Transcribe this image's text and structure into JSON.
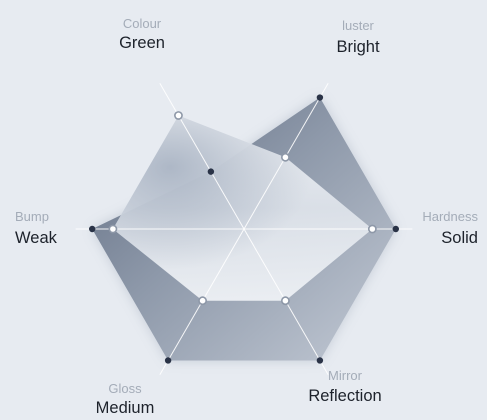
{
  "chart_data": {
    "type": "radar",
    "axes": [
      {
        "category": "Colour",
        "value": "Green"
      },
      {
        "category": "luster",
        "value": "Bright"
      },
      {
        "category": "Hardness",
        "value": "Solid"
      },
      {
        "category": "Mirror",
        "value": "Reflection"
      },
      {
        "category": "Gloss",
        "value": "Medium"
      },
      {
        "category": "Bump",
        "value": "Weak"
      }
    ],
    "series": [
      {
        "values": [
          0.48,
          1.1,
          1.1,
          1.1,
          1.1,
          1.1
        ]
      },
      {
        "values": [
          0.95,
          0.6,
          0.93,
          0.6,
          0.6,
          0.95
        ]
      }
    ],
    "max": 1.0,
    "grid": true,
    "colors": {
      "background": "#e7ebf1",
      "spoke": "#ffffff",
      "outer_dot": "#2a3347",
      "inner_dot_stroke": "#8e98a8",
      "inner_dot_fill": "#ffffff",
      "category_text": "#a4acb8",
      "value_text": "#1d222b"
    }
  }
}
